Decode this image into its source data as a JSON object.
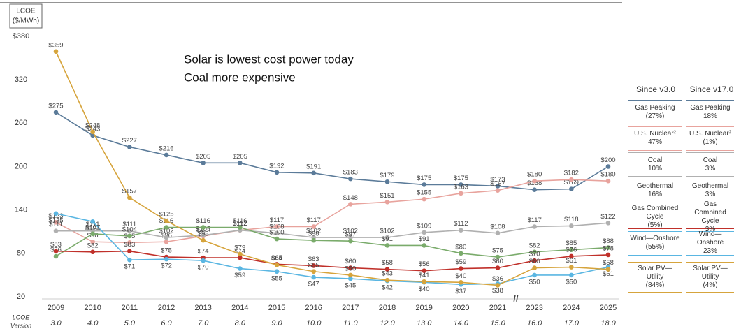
{
  "chart_data": {
    "type": "line",
    "ylabel_lines": [
      "LCOE",
      "($/MWh)"
    ],
    "xlabel_lines": [
      "LCOE",
      "Version"
    ],
    "annotations": [
      "Solar is lowest cost power today",
      "Coal more expensive"
    ],
    "categories": [
      "2009",
      "2010",
      "2011",
      "2012",
      "2013",
      "2014",
      "2015",
      "2016",
      "2017",
      "2018",
      "2019",
      "2020",
      "2021",
      "2023",
      "2024",
      "2025"
    ],
    "versions": [
      "3.0",
      "4.0",
      "5.0",
      "6.0",
      "7.0",
      "8.0",
      "9.0",
      "10.0",
      "11.0",
      "12.0",
      "13.0",
      "14.0",
      "15.0",
      "16.0",
      "17.0",
      "18.0"
    ],
    "ylim": [
      20,
      380
    ],
    "yticks": [
      20,
      80,
      140,
      200,
      260,
      320,
      {
        "value": 380,
        "label": "$380"
      }
    ],
    "grid": false,
    "legend_headers": [
      "Since v3.0",
      "Since v17.0"
    ],
    "series": [
      {
        "name": "Gas Peaking",
        "color": "#5b7b99",
        "since_v3": "(27%)",
        "since_v17": "18%",
        "values": [
          275,
          243,
          227,
          216,
          205,
          205,
          192,
          191,
          183,
          179,
          175,
          175,
          173,
          168,
          169,
          200
        ],
        "value_labels": [
          "$275",
          "$243",
          "$227",
          "$216",
          "$205",
          "$205",
          "$192",
          "$191",
          "$183",
          "$179",
          "$175",
          "$175",
          "$173",
          "$168",
          "$169",
          "$200"
        ]
      },
      {
        "name": "U.S. Nuclear²",
        "color": "#e8a39d",
        "since_v3": "47%",
        "since_v17": "(1%)",
        "values": [
          123,
          96,
          95,
          96,
          104,
          112,
          117,
          117,
          148,
          151,
          155,
          163,
          167,
          180,
          182,
          180
        ],
        "value_labels": [
          "$123",
          "$96",
          "$95",
          "$96",
          "$104",
          "$112",
          "$117",
          "$117",
          "$148",
          "$151",
          "$155",
          "$163",
          "$167",
          "$180",
          "$182",
          "$180"
        ]
      },
      {
        "name": "Coal",
        "color": "#b0b0b0",
        "since_v3": "10%",
        "since_v17": "3%",
        "values": [
          111,
          111,
          111,
          102,
          105,
          112,
          108,
          102,
          102,
          102,
          109,
          112,
          108,
          117,
          118,
          122
        ],
        "value_labels": [
          "$111",
          "$111",
          "$111",
          "$102",
          "$105",
          "$112",
          "$108",
          "$102",
          "$102",
          "$102",
          "$109",
          "$112",
          "$108",
          "$117",
          "$118",
          "$122"
        ]
      },
      {
        "name": "Geothermal",
        "color": "#7aab6b",
        "since_v3": "16%",
        "since_v17": "3%",
        "values": [
          76,
          107,
          104,
          116,
          116,
          116,
          100,
          98,
          97,
          91,
          91,
          80,
          75,
          82,
          85,
          88
        ],
        "value_labels": [
          "$76",
          "$107",
          "$104",
          "$116",
          "$116",
          "$116",
          "$100",
          "$98",
          "$97",
          "$91",
          "$91",
          "$80",
          "$75",
          "$82",
          "$85",
          "$88"
        ]
      },
      {
        "name": "Gas Combined Cycle",
        "color": "#c0302a",
        "since_v3": "(5%)",
        "since_v17": "3%",
        "values": [
          83,
          82,
          83,
          75,
          74,
          74,
          65,
          63,
          60,
          58,
          56,
          59,
          60,
          70,
          76,
          78
        ],
        "value_labels": [
          "$83",
          "$82",
          "$83",
          "$75",
          "$74",
          "$74",
          "$65",
          "$63",
          "$60",
          "$58",
          "$56",
          "$59",
          "$60",
          "$70",
          "$76",
          "$78"
        ]
      },
      {
        "name": "Wind—Onshore",
        "color": "#5ab6e2",
        "since_v3": "(55%)",
        "since_v17": "23%",
        "values": [
          135,
          124,
          71,
          72,
          70,
          59,
          55,
          47,
          45,
          42,
          40,
          37,
          38,
          50,
          50,
          61
        ],
        "value_labels": [
          "$135",
          "$124",
          "$71",
          "$72",
          "$70",
          "$59",
          "$55",
          "$47",
          "$45",
          "$42",
          "$40",
          "$37",
          "$38",
          "$50",
          "$50",
          "$61"
        ]
      },
      {
        "name": "Solar PV—Utility",
        "color": "#d6a43c",
        "since_v3": "(84%)",
        "since_v17": "(4%)",
        "values": [
          359,
          248,
          157,
          125,
          98,
          79,
          64,
          55,
          50,
          43,
          41,
          40,
          36,
          60,
          61,
          58
        ],
        "value_labels": [
          "$359",
          "$248",
          "$157",
          "$125",
          "$98",
          "$79",
          "$64",
          "$55",
          "$50",
          "$43",
          "$41",
          "$40",
          "$36",
          "$60",
          "$61",
          "$58"
        ]
      }
    ]
  }
}
